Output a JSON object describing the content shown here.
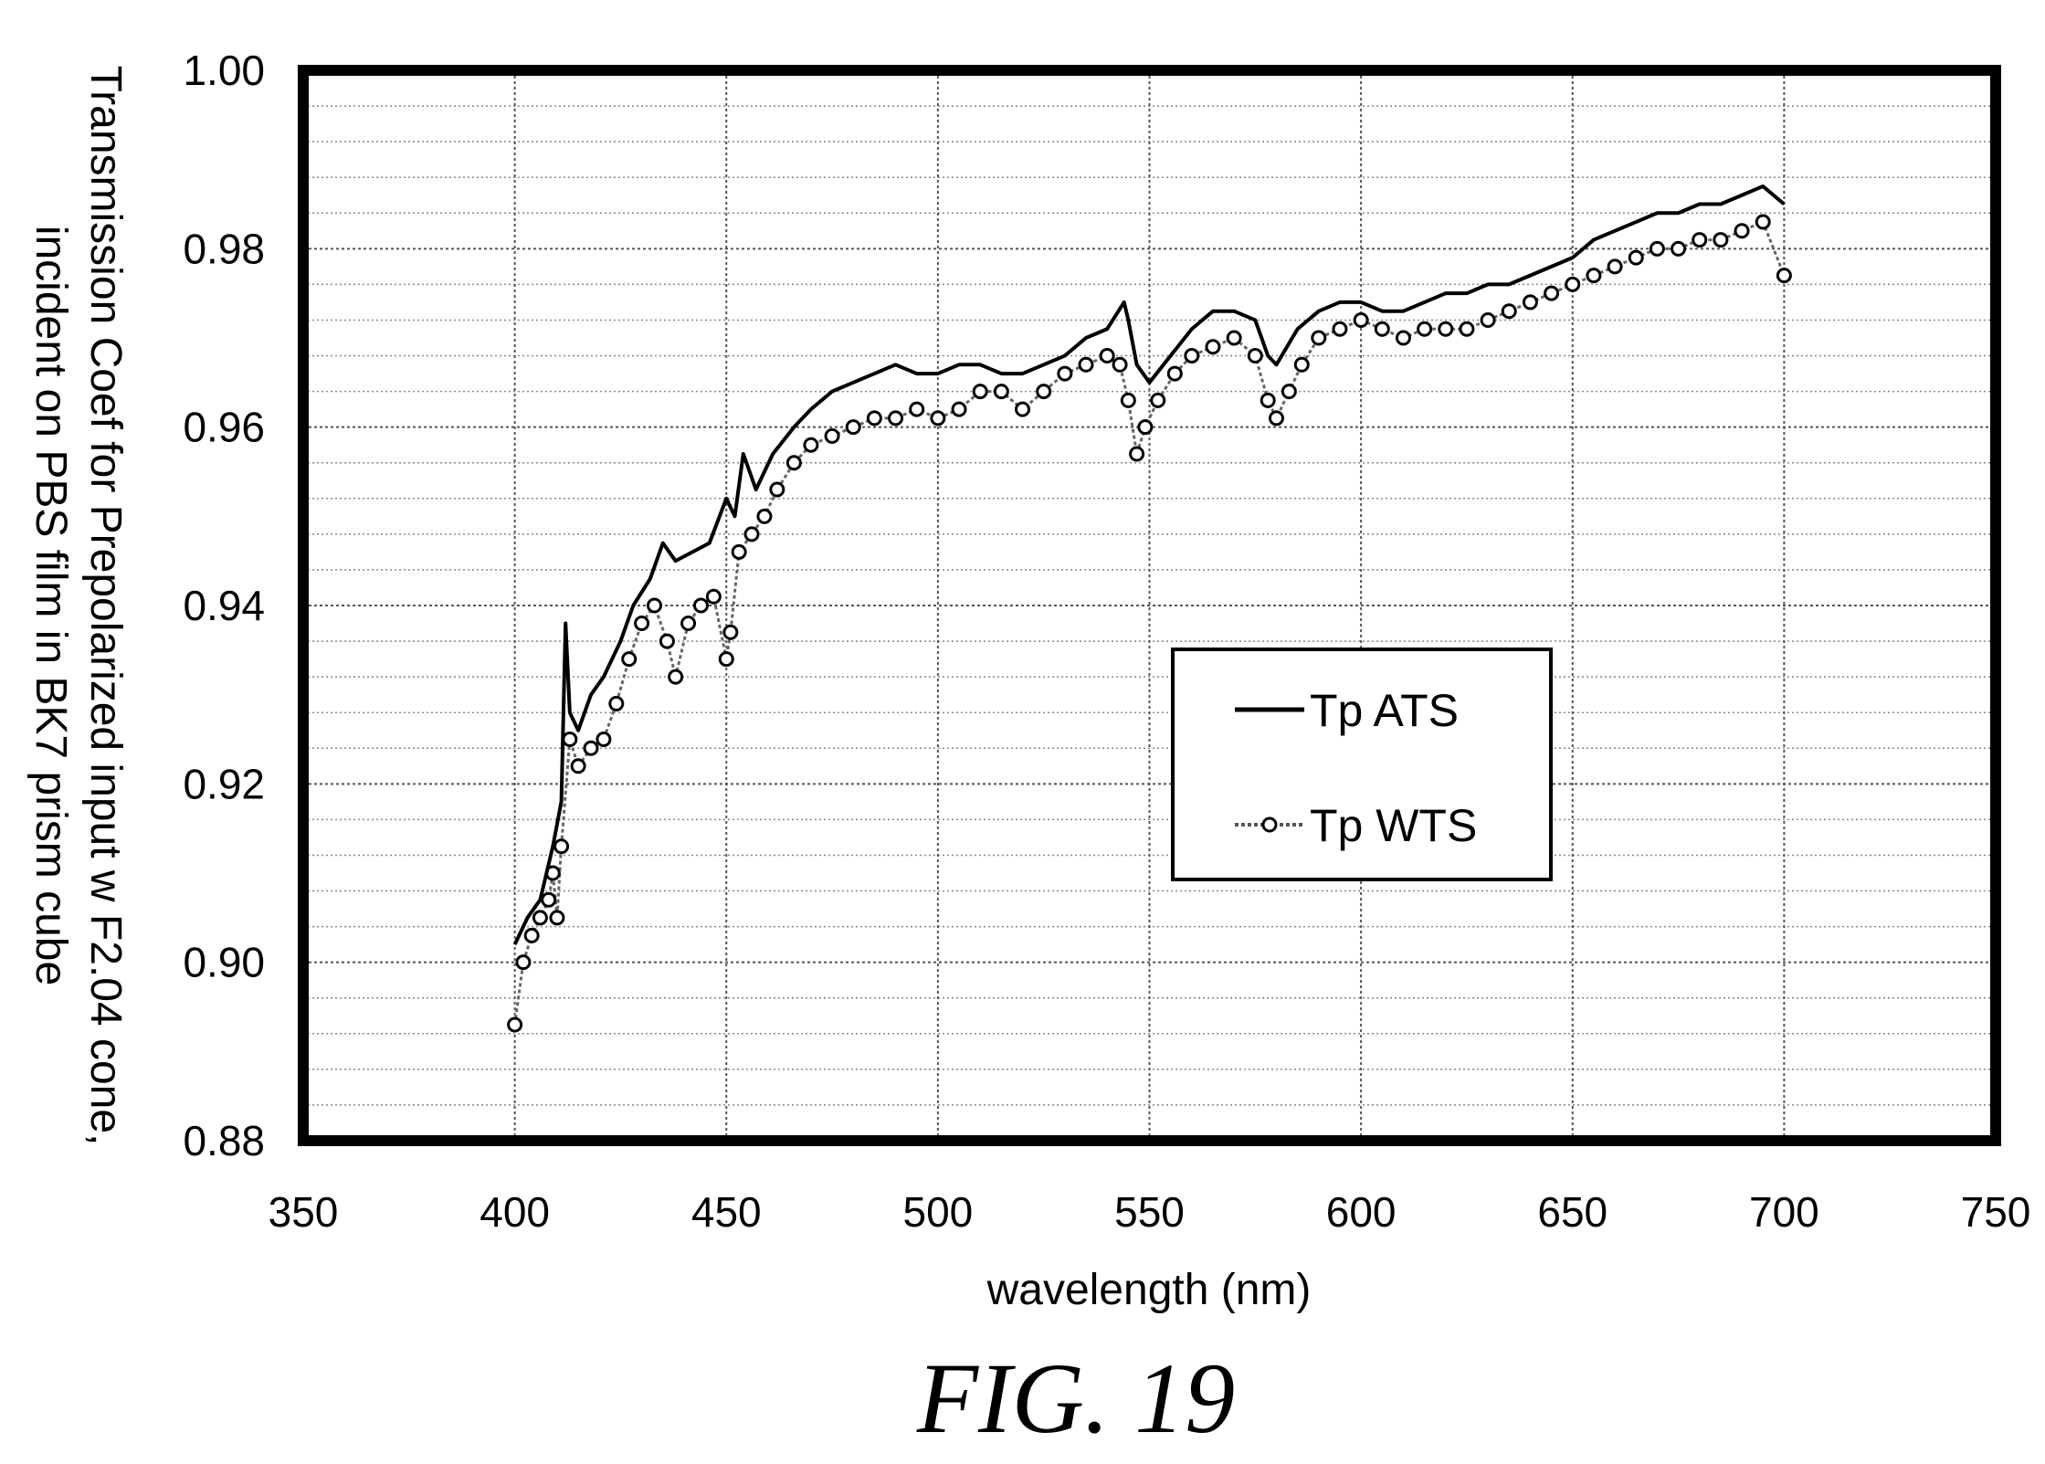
{
  "figure_label": "FIG. 19",
  "chart_data": {
    "type": "line",
    "title": "",
    "xlabel": "wavelength (nm)",
    "ylabel_lines": [
      "Transmission Coef for Prepolarized input w F2.04 cone,",
      "incident on PBS film in BK7 prism cube"
    ],
    "xlim": [
      350,
      750
    ],
    "ylim": [
      0.88,
      1.0
    ],
    "x_ticks": [
      "350",
      "400",
      "450",
      "500",
      "550",
      "600",
      "650",
      "700",
      "750"
    ],
    "y_ticks": [
      "0.88",
      "0.90",
      "0.92",
      "0.94",
      "0.96",
      "0.98",
      "1.00"
    ],
    "grid": true,
    "legend_position": "center-right",
    "series": [
      {
        "name": "Tp ATS",
        "style": "solid-line",
        "color": "#000000",
        "x": [
          400,
          403,
          406,
          409,
          411,
          412,
          413,
          415,
          418,
          421,
          425,
          428,
          432,
          435,
          438,
          442,
          446,
          450,
          452,
          454,
          457,
          461,
          466,
          470,
          475,
          480,
          485,
          490,
          495,
          500,
          505,
          510,
          515,
          520,
          525,
          530,
          535,
          540,
          544,
          545,
          547,
          550,
          555,
          560,
          565,
          570,
          575,
          578,
          580,
          585,
          590,
          595,
          600,
          605,
          610,
          615,
          620,
          625,
          630,
          635,
          640,
          645,
          650,
          655,
          660,
          665,
          670,
          675,
          680,
          685,
          690,
          695,
          700
        ],
        "values": [
          0.902,
          0.905,
          0.907,
          0.913,
          0.918,
          0.938,
          0.928,
          0.926,
          0.93,
          0.932,
          0.936,
          0.94,
          0.943,
          0.947,
          0.945,
          0.946,
          0.947,
          0.952,
          0.95,
          0.957,
          0.953,
          0.957,
          0.96,
          0.962,
          0.964,
          0.965,
          0.966,
          0.967,
          0.966,
          0.966,
          0.967,
          0.967,
          0.966,
          0.966,
          0.967,
          0.968,
          0.97,
          0.971,
          0.974,
          0.972,
          0.967,
          0.965,
          0.968,
          0.971,
          0.973,
          0.973,
          0.972,
          0.968,
          0.967,
          0.971,
          0.973,
          0.974,
          0.974,
          0.973,
          0.973,
          0.974,
          0.975,
          0.975,
          0.976,
          0.976,
          0.977,
          0.978,
          0.979,
          0.981,
          0.982,
          0.983,
          0.984,
          0.984,
          0.985,
          0.985,
          0.986,
          0.987,
          0.985
        ]
      },
      {
        "name": "Tp WTS",
        "style": "dotted-line-circle-markers",
        "color": "#000000",
        "x": [
          400,
          402,
          404,
          406,
          408,
          409,
          410,
          411,
          413,
          415,
          418,
          421,
          424,
          427,
          430,
          433,
          436,
          438,
          441,
          444,
          447,
          450,
          451,
          453,
          456,
          459,
          462,
          466,
          470,
          475,
          480,
          485,
          490,
          495,
          500,
          505,
          510,
          515,
          520,
          525,
          530,
          535,
          540,
          543,
          545,
          547,
          549,
          552,
          556,
          560,
          565,
          570,
          575,
          578,
          580,
          583,
          586,
          590,
          595,
          600,
          605,
          610,
          615,
          620,
          625,
          630,
          635,
          640,
          645,
          650,
          655,
          660,
          665,
          670,
          675,
          680,
          685,
          690,
          695,
          700
        ],
        "values": [
          0.893,
          0.9,
          0.903,
          0.905,
          0.907,
          0.91,
          0.905,
          0.913,
          0.925,
          0.922,
          0.924,
          0.925,
          0.929,
          0.934,
          0.938,
          0.94,
          0.936,
          0.932,
          0.938,
          0.94,
          0.941,
          0.934,
          0.937,
          0.946,
          0.948,
          0.95,
          0.953,
          0.956,
          0.958,
          0.959,
          0.96,
          0.961,
          0.961,
          0.962,
          0.961,
          0.962,
          0.964,
          0.964,
          0.962,
          0.964,
          0.966,
          0.967,
          0.968,
          0.967,
          0.963,
          0.957,
          0.96,
          0.963,
          0.966,
          0.968,
          0.969,
          0.97,
          0.968,
          0.963,
          0.961,
          0.964,
          0.967,
          0.97,
          0.971,
          0.972,
          0.971,
          0.97,
          0.971,
          0.971,
          0.971,
          0.972,
          0.973,
          0.974,
          0.975,
          0.976,
          0.977,
          0.978,
          0.979,
          0.98,
          0.98,
          0.981,
          0.981,
          0.982,
          0.983,
          0.977
        ]
      }
    ]
  }
}
